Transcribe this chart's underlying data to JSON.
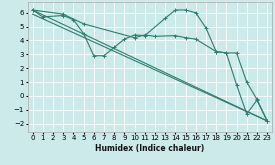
{
  "xlabel": "Humidex (Indice chaleur)",
  "bg_color": "#cceaea",
  "grid_color": "#ffffff",
  "line_color": "#2e7d6e",
  "xlim": [
    -0.5,
    23.5
  ],
  "ylim": [
    -2.6,
    6.8
  ],
  "xticks": [
    0,
    1,
    2,
    3,
    4,
    5,
    6,
    7,
    8,
    9,
    10,
    11,
    12,
    13,
    14,
    15,
    16,
    17,
    18,
    19,
    20,
    21,
    22,
    23
  ],
  "yticks": [
    -2,
    -1,
    0,
    1,
    2,
    3,
    4,
    5,
    6
  ],
  "line1_x": [
    0,
    1,
    3,
    4,
    5,
    6,
    7,
    8,
    9,
    10,
    11,
    13,
    14,
    15,
    16,
    17,
    18,
    19,
    20,
    21,
    22,
    23
  ],
  "line1_y": [
    6.2,
    5.7,
    5.8,
    5.5,
    4.5,
    2.9,
    2.9,
    3.5,
    4.1,
    4.4,
    4.35,
    5.6,
    6.2,
    6.2,
    6.0,
    4.9,
    3.2,
    3.1,
    0.8,
    -1.3,
    -0.3,
    -1.8
  ],
  "line2_x": [
    0,
    3,
    5,
    10,
    11,
    12,
    14,
    15,
    16,
    18,
    19,
    20,
    21,
    22,
    23
  ],
  "line2_y": [
    6.2,
    5.9,
    5.2,
    4.2,
    4.4,
    4.3,
    4.35,
    4.2,
    4.1,
    3.2,
    3.1,
    3.1,
    1.0,
    -0.25,
    -1.8
  ],
  "line3_x": [
    0,
    23
  ],
  "line3_y": [
    6.2,
    -1.8
  ],
  "line4_x": [
    0,
    23
  ],
  "line4_y": [
    5.9,
    -1.8
  ]
}
